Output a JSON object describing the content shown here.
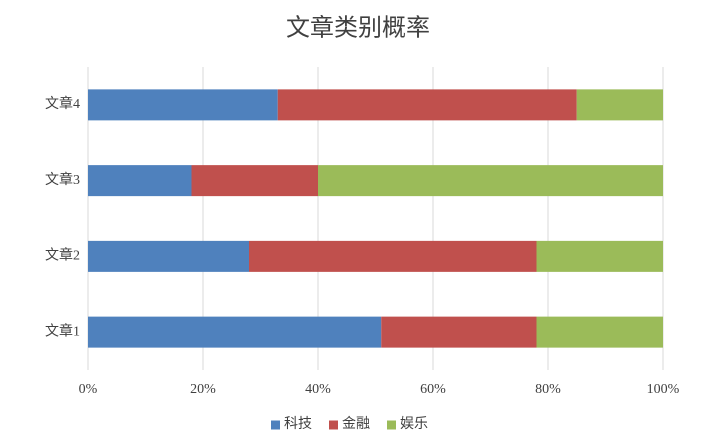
{
  "chart_data": {
    "type": "stacked-bar-horizontal",
    "title": "文章类别概率",
    "categories": [
      "文章1",
      "文章2",
      "文章3",
      "文章4"
    ],
    "series": [
      {
        "name": "科技",
        "color": "#4f81bd",
        "values": [
          51,
          28,
          18,
          33
        ]
      },
      {
        "name": "金融",
        "color": "#c0504d",
        "values": [
          27,
          50,
          22,
          52
        ]
      },
      {
        "name": "娱乐",
        "color": "#9bbb59",
        "values": [
          22,
          22,
          60,
          15
        ]
      }
    ],
    "xlim": [
      0,
      100
    ],
    "xticks": [
      {
        "value": 0,
        "label": "0%"
      },
      {
        "value": 20,
        "label": "20%"
      },
      {
        "value": 40,
        "label": "40%"
      },
      {
        "value": 60,
        "label": "60%"
      },
      {
        "value": 80,
        "label": "80%"
      },
      {
        "value": 100,
        "label": "100%"
      }
    ],
    "grid": true,
    "legend": "bottom"
  }
}
